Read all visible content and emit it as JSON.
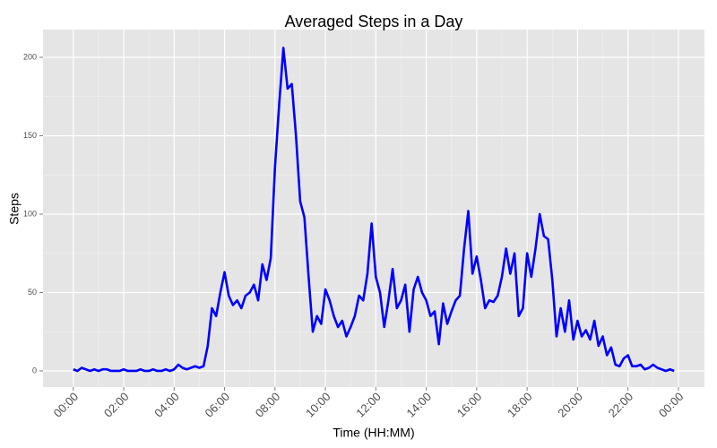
{
  "chart_data": {
    "type": "line",
    "title": "Averaged Steps in a Day",
    "x_label": "Time (HH:MM)",
    "y_label": "Steps",
    "x": [
      0,
      10,
      20,
      30,
      40,
      50,
      60,
      70,
      80,
      90,
      100,
      110,
      120,
      130,
      140,
      150,
      160,
      170,
      180,
      190,
      200,
      210,
      220,
      230,
      240,
      250,
      260,
      270,
      280,
      290,
      300,
      310,
      320,
      330,
      340,
      350,
      360,
      370,
      380,
      390,
      400,
      410,
      420,
      430,
      440,
      450,
      460,
      470,
      480,
      490,
      500,
      510,
      520,
      530,
      540,
      550,
      560,
      570,
      580,
      590,
      600,
      610,
      620,
      630,
      640,
      650,
      660,
      670,
      680,
      690,
      700,
      710,
      720,
      730,
      740,
      750,
      760,
      770,
      780,
      790,
      800,
      810,
      820,
      830,
      840,
      850,
      860,
      870,
      880,
      890,
      900,
      910,
      920,
      930,
      940,
      950,
      960,
      970,
      980,
      990,
      1000,
      1010,
      1020,
      1030,
      1040,
      1050,
      1060,
      1070,
      1080,
      1090,
      1100,
      1110,
      1120,
      1130,
      1140,
      1150,
      1160,
      1170,
      1180,
      1190,
      1200,
      1210,
      1220,
      1230,
      1240,
      1250,
      1260,
      1270,
      1280,
      1290,
      1300,
      1310,
      1320,
      1330,
      1340,
      1350,
      1360,
      1370,
      1380,
      1390,
      1400,
      1410,
      1420,
      1430
    ],
    "series": [
      {
        "name": "Steps",
        "color": "#0000ff",
        "values": [
          1,
          0,
          2,
          1,
          0,
          1,
          0,
          1,
          1,
          0,
          0,
          0,
          1,
          0,
          0,
          0,
          1,
          0,
          0,
          1,
          0,
          0,
          1,
          0,
          1,
          4,
          2,
          1,
          2,
          3,
          2,
          3,
          16,
          40,
          35,
          50,
          63,
          48,
          42,
          45,
          40,
          48,
          50,
          55,
          45,
          68,
          58,
          72,
          130,
          170,
          206,
          180,
          183,
          150,
          108,
          98,
          60,
          25,
          35,
          30,
          52,
          45,
          35,
          28,
          32,
          22,
          28,
          35,
          48,
          45,
          62,
          94,
          60,
          50,
          28,
          45,
          65,
          40,
          45,
          55,
          25,
          52,
          60,
          50,
          45,
          35,
          38,
          17,
          43,
          30,
          38,
          45,
          48,
          78,
          102,
          62,
          73,
          58,
          40,
          45,
          44,
          48,
          60,
          78,
          62,
          75,
          35,
          40,
          75,
          60,
          78,
          100,
          86,
          84,
          58,
          22,
          40,
          25,
          45,
          20,
          32,
          22,
          26,
          20,
          32,
          16,
          22,
          10,
          15,
          4,
          3,
          8,
          10,
          3,
          3,
          4,
          1,
          2,
          4,
          2,
          1,
          0,
          1,
          0
        ]
      }
    ],
    "xlim": [
      -72,
      1502
    ],
    "ylim": [
      -10.3,
      217.7
    ],
    "xticks": [
      {
        "value": 0,
        "label": "00:00"
      },
      {
        "value": 120,
        "label": "02:00"
      },
      {
        "value": 240,
        "label": "04:00"
      },
      {
        "value": 360,
        "label": "06:00"
      },
      {
        "value": 480,
        "label": "08:00"
      },
      {
        "value": 600,
        "label": "10:00"
      },
      {
        "value": 720,
        "label": "12:00"
      },
      {
        "value": 840,
        "label": "14:00"
      },
      {
        "value": 960,
        "label": "16:00"
      },
      {
        "value": 1080,
        "label": "18:00"
      },
      {
        "value": 1200,
        "label": "20:00"
      },
      {
        "value": 1320,
        "label": "22:00"
      },
      {
        "value": 1440,
        "label": "00:00"
      }
    ],
    "yticks": [
      0,
      50,
      100,
      150,
      200
    ],
    "grid": true
  }
}
